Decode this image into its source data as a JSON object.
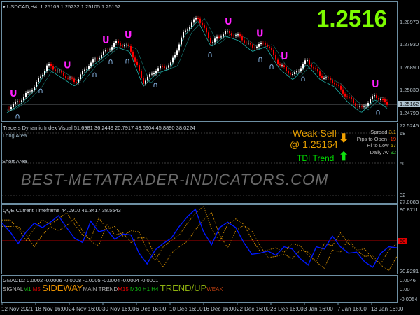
{
  "chart_data": {
    "type": "line",
    "symbol": "USDCAD,H4",
    "ohlc": "1.25109 1.25232 1.25105 1.25162",
    "big_price": "1.2516",
    "current_price": "1.25162",
    "price_axis": [
      "1.28970",
      "1.27930",
      "1.26890",
      "1.25830",
      "1.24790"
    ],
    "price_closes": [
      1.25,
      1.254,
      1.26,
      1.27,
      1.266,
      1.262,
      1.27,
      1.275,
      1.28,
      1.278,
      1.262,
      1.268,
      1.27,
      1.285,
      1.292,
      1.28,
      1.285,
      1.283,
      1.278,
      1.28,
      1.27,
      1.265,
      1.272,
      1.265,
      1.262,
      1.255,
      1.25,
      1.256,
      1.2516
    ],
    "time_labels": [
      "12 Nov 2021",
      "18 Nov 16:00",
      "24 Nov 16:00",
      "30 Nov 16:00",
      "6 Dec 16:00",
      "10 Dec 16:00",
      "16 Dec 16:00",
      "22 Dec 16:00",
      "28 Dec 16:00",
      "3 Jan 16:00",
      "7 Jan 16:00",
      "13 Jan 16:00"
    ],
    "tdi": {
      "title": "Traders Dynamic Index Visual 51.6981 36.2449 20.7917 43.6904 45.8890 38.0224",
      "overlay": "Long Area",
      "short_label": "Short Area",
      "axis": [
        "72.5245",
        "68",
        "50",
        "32",
        "27.0083"
      ]
    },
    "qqe": {
      "title": "QQE Current Timeframe 44.0910 41.3417 38.5543",
      "axis": [
        "80.8711",
        "50",
        "20.9281"
      ],
      "ylim": [
        20.9281,
        80.8711
      ],
      "blue": [
        66,
        58,
        47,
        58,
        66,
        62,
        67,
        73,
        62,
        52,
        48,
        68,
        58,
        60,
        51,
        56,
        55,
        38,
        28,
        41,
        47,
        52,
        63,
        72,
        79,
        58,
        46,
        62,
        67,
        62,
        48,
        37,
        38,
        40,
        36,
        44,
        42,
        33,
        27,
        44,
        42,
        54,
        44,
        38,
        39,
        30,
        25,
        38,
        44,
        43
      ]
    },
    "macd": {
      "title": "GMACD2 0.0002 -0.0006 -0.0008 -0.0005 -0.0004 -0.0004 -0.0001",
      "axis": [
        "0.0046",
        "0.00",
        "-0.0054"
      ],
      "signal": "SIGNAL",
      "m1": "M1",
      "m5": "M5",
      "sideway": "SIDEWAY",
      "main_trend": "MAIN TREND",
      "m15": "M15",
      "m30": "M30",
      "h1": "H1",
      "h4": "H4",
      "trend_up": "TREND/UP",
      "weak": "WEAK"
    }
  },
  "signal_panel": {
    "weak_sell": "Weak Sell",
    "at_price": "@ 1.25164",
    "tdi_trend": "TDI Trend",
    "rows": [
      {
        "label": "Spread",
        "value": "3.1",
        "color": "#e0a000"
      },
      {
        "label": "Pips to Open",
        "value": "-19",
        "color": "#ff3000"
      },
      {
        "label": "Hi to Low",
        "value": "57",
        "color": "#e0c000"
      },
      {
        "label": "Daily Av",
        "value": "92",
        "color": "#30c030"
      }
    ]
  },
  "watermark": "BEST-METATRADER-INDICATORS.COM",
  "colors": {
    "bull": "#ffffff",
    "bear": "#ff0000",
    "band": "#20b2aa",
    "qqe_blue": "#0018ff",
    "qqe_dots": "#d89000",
    "level50": "#8b0000",
    "big_price": "#7cfc00"
  }
}
